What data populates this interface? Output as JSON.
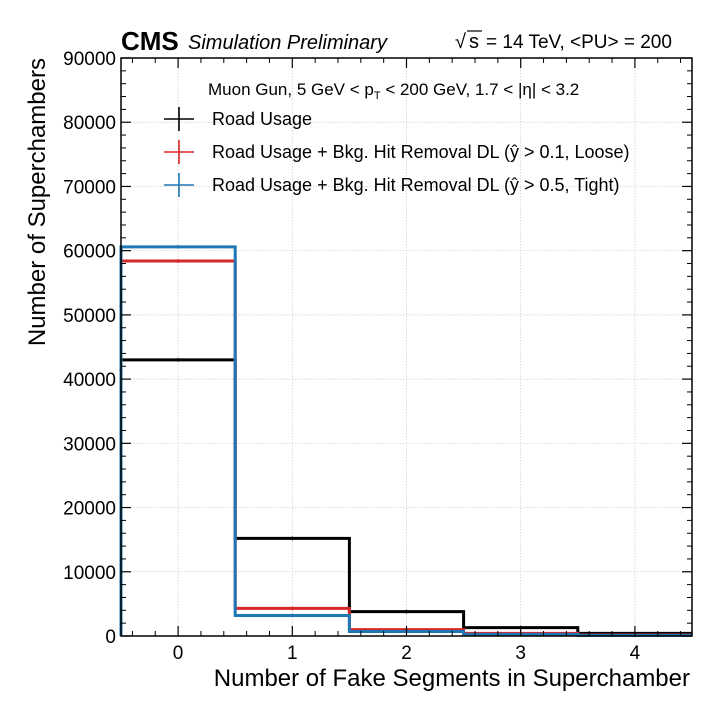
{
  "header": {
    "experiment": "CMS",
    "status": "Simulation Preliminary",
    "energy_label": "= 14 TeV, <PU> = 200",
    "sqrt_s_symbol": "s"
  },
  "annotation": {
    "part1": "Muon Gun, 5 GeV < p",
    "sub": "T",
    "part2": " < 200 GeV, 1.7 < |η| < 3.2"
  },
  "chart_data": {
    "type": "histogram",
    "xlabel": "Number of Fake Segments in Superchamber",
    "ylabel": "Number of Superchambers",
    "xlim": [
      -0.5,
      4.5
    ],
    "ylim": [
      0,
      90000
    ],
    "xticks": [
      0,
      1,
      2,
      3,
      4
    ],
    "yticks": [
      0,
      10000,
      20000,
      30000,
      40000,
      50000,
      60000,
      70000,
      80000,
      90000
    ],
    "grid": true,
    "legend_position": "top",
    "bin_edges": [
      -0.5,
      0.5,
      1.5,
      2.5,
      3.5,
      4.5
    ],
    "series": [
      {
        "name": "Road Usage",
        "color": "#000000",
        "values": [
          43000,
          15200,
          3800,
          1300,
          400
        ]
      },
      {
        "name": "Road Usage + Bkg. Hit Removal DL (ŷ > 0.1, Loose)",
        "color": "#d62728",
        "values": [
          58400,
          4300,
          1000,
          400,
          150
        ]
      },
      {
        "name": "Road Usage + Bkg. Hit Removal DL (ŷ > 0.5, Tight)",
        "color": "#1f77b4",
        "values": [
          60600,
          3200,
          700,
          250,
          100
        ]
      }
    ]
  }
}
